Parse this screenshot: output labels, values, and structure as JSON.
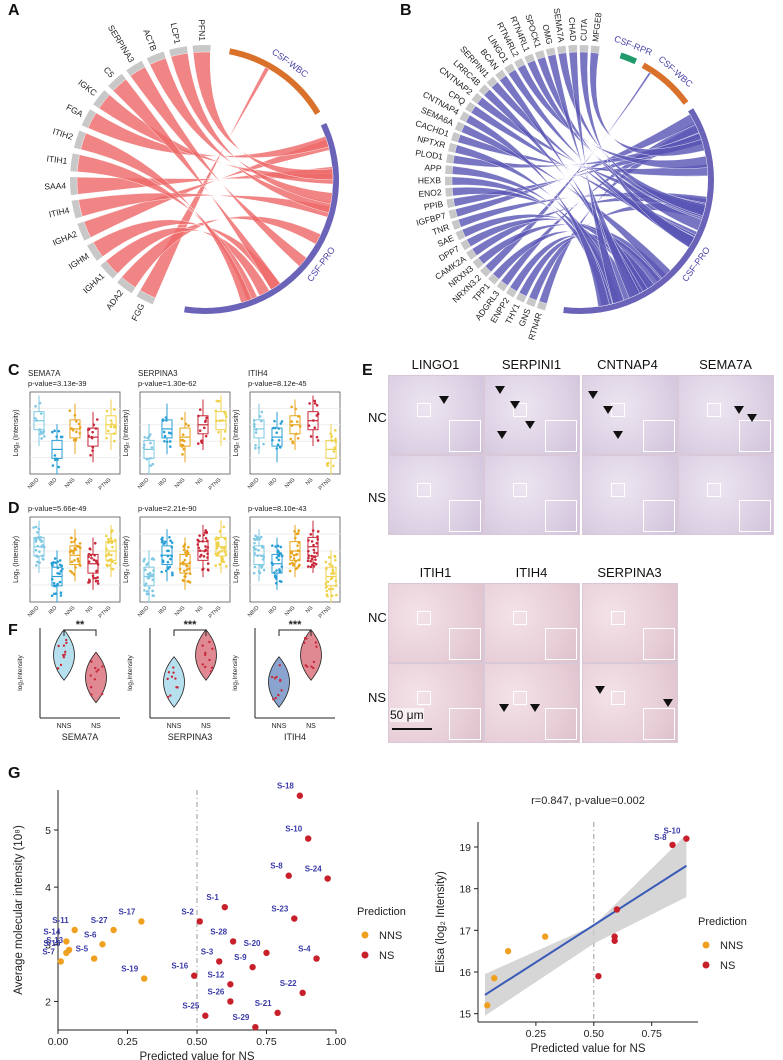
{
  "panel_labels": {
    "A": "A",
    "B": "B",
    "C": "C",
    "D": "D",
    "E": "E",
    "F": "F",
    "G": "G"
  },
  "chord_A": {
    "genes": [
      "FGG",
      "ADA2",
      "IGHA1",
      "IGHM",
      "IGHA2",
      "ITIH4",
      "SAA4",
      "ITIH1",
      "ITIH2",
      "FGA",
      "IGKC",
      "C5",
      "SERPINA3",
      "ACTB",
      "LCP1",
      "PFN1"
    ],
    "groups": [
      "CSF-WBC",
      "CSF-PRO"
    ],
    "colors": {
      "ribbon": "#ee6a6a",
      "wbc": "#d9712b",
      "pro": "#6a63b8",
      "gene": "#c8c8c8"
    }
  },
  "chord_B": {
    "genes": [
      "RTN4R",
      "GNS",
      "THY1",
      "ENPP2",
      "ADGRL3",
      "TPP1",
      "NRXN3.2",
      "NRXN3",
      "CAMK2A",
      "DPP7",
      "SAE",
      "TNR",
      "IGFBP7",
      "PPIB",
      "ENO2",
      "HEXB",
      "APP",
      "PLOD1",
      "NPTXR",
      "CACHD1",
      "SEMA6A",
      "CNTNAP4",
      "CPQ",
      "CNTNAP2",
      "LRRC4B",
      "SERPINI1",
      "BCAN",
      "LINGO1",
      "RTN4RL2",
      "RTN4RL1",
      "SPOCK1",
      "OMG",
      "SEMA7A",
      "CHAD",
      "CUTA",
      "MFGE8"
    ],
    "groups": [
      "CSF-RPR",
      "CSF-WBC",
      "CSF-PRO"
    ],
    "colors": {
      "ribbon": "#5a57b5",
      "rpr": "#1f9a6b",
      "wbc": "#d9712b",
      "pro": "#6a63b8",
      "gene": "#c8c8c8"
    }
  },
  "box_C": {
    "ylabel": "Log₂ (Intensity)",
    "categories": [
      "NBID",
      "IBD",
      "NNS",
      "NS",
      "PTNS"
    ],
    "panels": [
      {
        "title": "SEMA7A",
        "pvalue": "p-value=3.13e-39"
      },
      {
        "title": "SERPINA3",
        "pvalue": "p-value=1.30e-62"
      },
      {
        "title": "ITIH4",
        "pvalue": "p-value=8.12e-45"
      }
    ]
  },
  "box_D": {
    "ylabel": "Log₂ (Intensity)",
    "categories": [
      "NBID",
      "IBD",
      "NNS",
      "NS",
      "PTNS"
    ],
    "panels": [
      {
        "pvalue": "p-value=5.66e-49"
      },
      {
        "pvalue": "p-value=2.21e-90"
      },
      {
        "pvalue": "p-value=8.10e-43"
      }
    ],
    "colors": [
      "#7ec8e3",
      "#2a9fd6",
      "#e8a41c",
      "#c8283a",
      "#f0d24a"
    ]
  },
  "violin_F": {
    "ylabel": "log₂Intensity",
    "groups": [
      "NNS",
      "NS"
    ],
    "panels": [
      {
        "gene": "SEMA7A",
        "sig": "**"
      },
      {
        "gene": "SERPINA3",
        "sig": "***"
      },
      {
        "gene": "ITIH4",
        "sig": "***"
      }
    ]
  },
  "ihc_E": {
    "top_titles": [
      "LINGO1",
      "SERPINI1",
      "CNTNAP4",
      "SEMA7A"
    ],
    "bottom_titles": [
      "ITIH1",
      "ITIH4",
      "SERPINA3"
    ],
    "rows": [
      "NC",
      "NS"
    ],
    "scalebar": "50 μm"
  },
  "chart_data": [
    {
      "type": "scatter",
      "title": "",
      "xlabel": "Predicted value for NS",
      "ylabel": "Average molecular intensity (10⁸)",
      "xlim": [
        0,
        1
      ],
      "ylim": [
        1.5,
        5.7
      ],
      "xticks": [
        "0.00",
        "0.25",
        "0.50",
        "0.75",
        "1.00"
      ],
      "yticks": [
        "2",
        "3",
        "4",
        "5"
      ],
      "legend_title": "Prediction",
      "legend": [
        "NNS",
        "NS"
      ],
      "colors": {
        "NNS": "#f0a020",
        "NS": "#c8202a"
      },
      "points": [
        {
          "label": "S-14",
          "x": 0.03,
          "y": 3.05,
          "group": "NNS"
        },
        {
          "label": "S-11",
          "x": 0.06,
          "y": 3.25,
          "group": "NNS"
        },
        {
          "label": "S-13",
          "x": 0.04,
          "y": 2.9,
          "group": "NNS"
        },
        {
          "label": "S-15",
          "x": 0.03,
          "y": 2.85,
          "group": "NNS"
        },
        {
          "label": "S-7",
          "x": 0.01,
          "y": 2.7,
          "group": "NNS"
        },
        {
          "label": "S-5",
          "x": 0.13,
          "y": 2.75,
          "group": "NNS"
        },
        {
          "label": "S-27",
          "x": 0.2,
          "y": 3.25,
          "group": "NNS"
        },
        {
          "label": "S-6",
          "x": 0.16,
          "y": 3.0,
          "group": "NNS"
        },
        {
          "label": "S-17",
          "x": 0.3,
          "y": 3.4,
          "group": "NNS"
        },
        {
          "label": "S-19",
          "x": 0.31,
          "y": 2.4,
          "group": "NNS"
        },
        {
          "label": "S-18",
          "x": 0.87,
          "y": 5.6,
          "group": "NS"
        },
        {
          "label": "S-10",
          "x": 0.9,
          "y": 4.85,
          "group": "NS"
        },
        {
          "label": "S-8",
          "x": 0.83,
          "y": 4.2,
          "group": "NS"
        },
        {
          "label": "S-24",
          "x": 0.97,
          "y": 4.15,
          "group": "NS"
        },
        {
          "label": "S-1",
          "x": 0.6,
          "y": 3.65,
          "group": "NS"
        },
        {
          "label": "S-2",
          "x": 0.51,
          "y": 3.4,
          "group": "NS"
        },
        {
          "label": "S-23",
          "x": 0.85,
          "y": 3.45,
          "group": "NS"
        },
        {
          "label": "S-28",
          "x": 0.63,
          "y": 3.05,
          "group": "NS"
        },
        {
          "label": "S-20",
          "x": 0.75,
          "y": 2.85,
          "group": "NS"
        },
        {
          "label": "S-3",
          "x": 0.58,
          "y": 2.7,
          "group": "NS"
        },
        {
          "label": "S-9",
          "x": 0.7,
          "y": 2.6,
          "group": "NS"
        },
        {
          "label": "S-4",
          "x": 0.93,
          "y": 2.75,
          "group": "NS"
        },
        {
          "label": "S-12",
          "x": 0.62,
          "y": 2.3,
          "group": "NS"
        },
        {
          "label": "S-16",
          "x": 0.49,
          "y": 2.45,
          "group": "NS"
        },
        {
          "label": "S-26",
          "x": 0.62,
          "y": 2.0,
          "group": "NS"
        },
        {
          "label": "S-22",
          "x": 0.88,
          "y": 2.15,
          "group": "NS"
        },
        {
          "label": "S-21",
          "x": 0.79,
          "y": 1.8,
          "group": "NS"
        },
        {
          "label": "S-25",
          "x": 0.53,
          "y": 1.75,
          "group": "NS"
        },
        {
          "label": "S-29",
          "x": 0.71,
          "y": 1.55,
          "group": "NS"
        }
      ]
    },
    {
      "type": "scatter",
      "title": "r=0.847, p-value=0.002",
      "xlabel": "Predicted value for NS",
      "ylabel": "Elisa (log₂ Intensity)",
      "xlim": [
        0,
        0.95
      ],
      "ylim": [
        14.8,
        19.6
      ],
      "xticks": [
        "0.25",
        "0.50",
        "0.75"
      ],
      "yticks": [
        "15",
        "16",
        "17",
        "18",
        "19"
      ],
      "legend_title": "Prediction",
      "legend": [
        "NNS",
        "NS"
      ],
      "colors": {
        "NNS": "#f0a020",
        "NS": "#c8202a",
        "fit": "#3a5ab8",
        "band": "#c8c8c8"
      },
      "fit_line": {
        "x": [
          0.03,
          0.9
        ],
        "y": [
          15.45,
          18.55
        ]
      },
      "points": [
        {
          "label": "",
          "x": 0.04,
          "y": 15.2,
          "group": "NNS"
        },
        {
          "label": "",
          "x": 0.07,
          "y": 15.85,
          "group": "NNS"
        },
        {
          "label": "",
          "x": 0.13,
          "y": 16.5,
          "group": "NNS"
        },
        {
          "label": "",
          "x": 0.29,
          "y": 16.85,
          "group": "NNS"
        },
        {
          "label": "",
          "x": 0.52,
          "y": 15.9,
          "group": "NS"
        },
        {
          "label": "",
          "x": 0.59,
          "y": 16.75,
          "group": "NS"
        },
        {
          "label": "",
          "x": 0.59,
          "y": 16.85,
          "group": "NS"
        },
        {
          "label": "",
          "x": 0.6,
          "y": 17.5,
          "group": "NS"
        },
        {
          "label": "S-8",
          "x": 0.84,
          "y": 19.05,
          "group": "NS"
        },
        {
          "label": "S-10",
          "x": 0.9,
          "y": 19.2,
          "group": "NS"
        }
      ]
    }
  ]
}
